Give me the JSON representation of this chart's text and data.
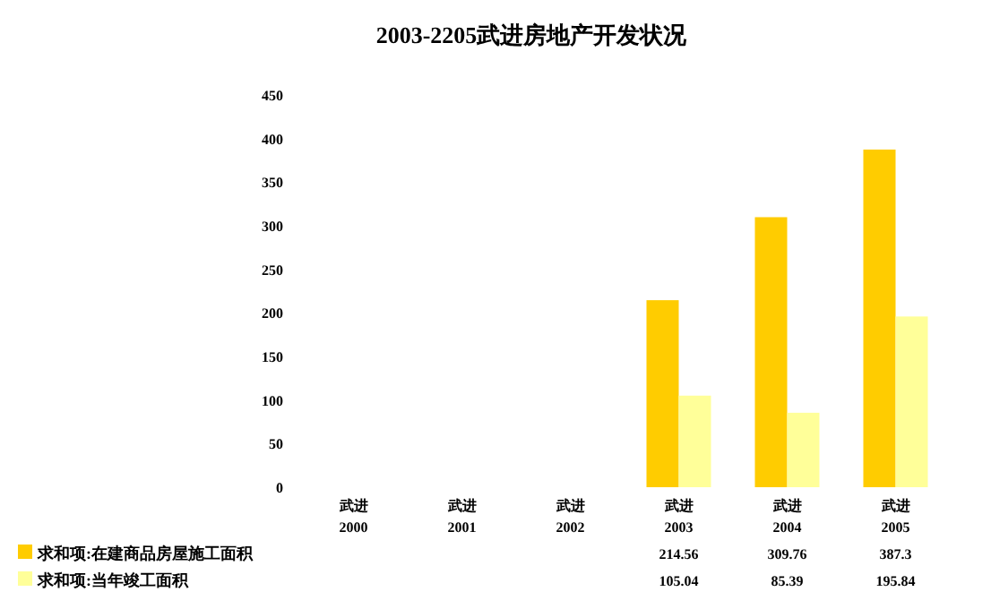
{
  "chart_data": {
    "type": "bar",
    "title": "2003-2205武进房地产开发状况",
    "categories": [
      "武进\n2000",
      "武进\n2001",
      "武进\n2002",
      "武进\n2003",
      "武进\n2004",
      "武进\n2005"
    ],
    "series": [
      {
        "name": "求和项:在建商品房屋施工面积",
        "color": "#ffcc00",
        "values": [
          null,
          null,
          null,
          214.56,
          309.76,
          387.3
        ]
      },
      {
        "name": "求和项:当年竣工面积",
        "color": "#ffff99",
        "values": [
          null,
          null,
          null,
          105.04,
          85.39,
          195.84
        ]
      }
    ],
    "ylim": [
      0,
      450
    ],
    "yticks": [
      0,
      50,
      100,
      150,
      200,
      250,
      300,
      350,
      400,
      450
    ],
    "grid": false,
    "data_labels": true,
    "legend": "bottom"
  }
}
